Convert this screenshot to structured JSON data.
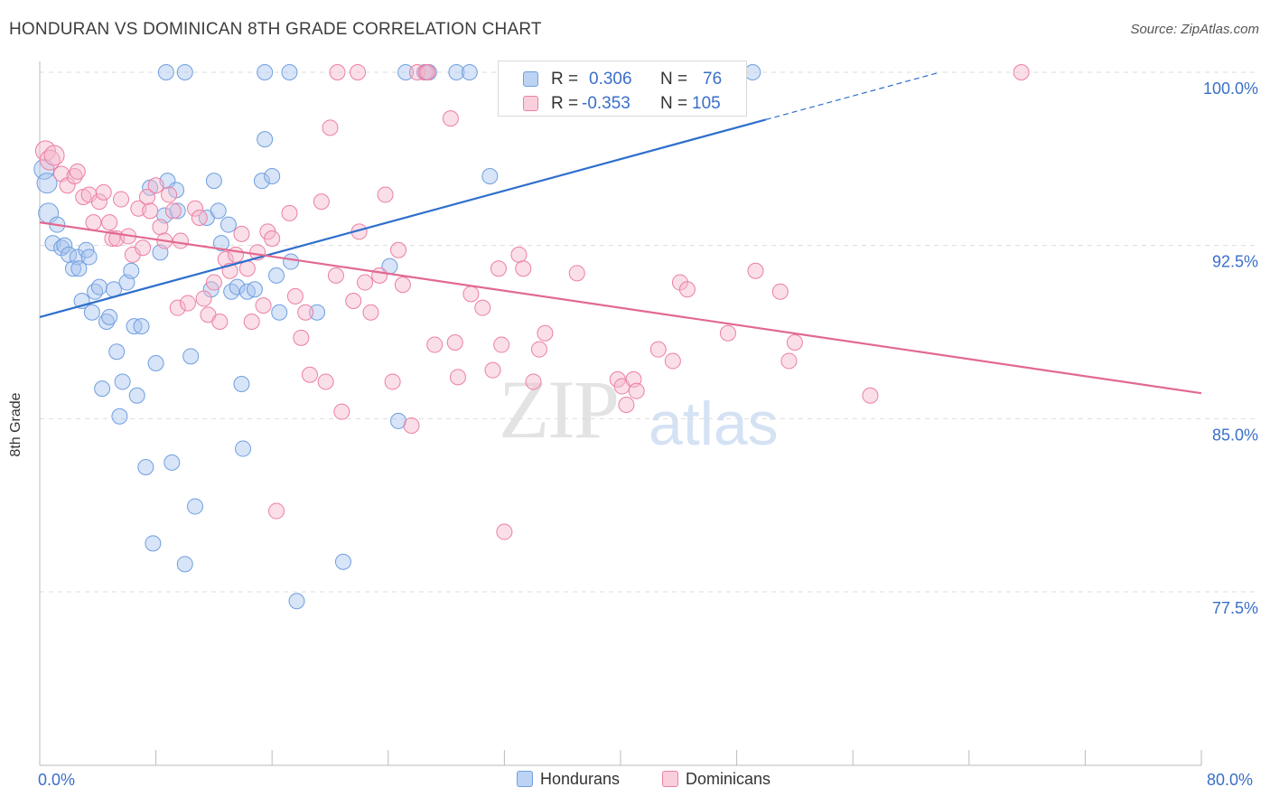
{
  "title": "HONDURAN VS DOMINICAN 8TH GRADE CORRELATION CHART",
  "source": "Source: ZipAtlas.com",
  "watermark": {
    "zip": "ZIP",
    "atlas": "atlas"
  },
  "legend": {
    "rows": [
      {
        "r_label": "R =",
        "r_value": "0.306",
        "n_label": "N =",
        "n_value": "76",
        "color": "#a9c4ee"
      },
      {
        "r_label": "R =",
        "r_value": "-0.353",
        "n_label": "N =",
        "n_value": "105",
        "color": "#f5b9cb"
      }
    ],
    "bottom": [
      {
        "label": "Hondurans",
        "color": "#a9c4ee"
      },
      {
        "label": "Dominicans",
        "color": "#f5b9cb"
      }
    ]
  },
  "chart_data": {
    "type": "scatter",
    "title": "HONDURAN VS DOMINICAN 8TH GRADE CORRELATION CHART",
    "xlabel": "",
    "ylabel": "8th Grade",
    "xlim": [
      0,
      80
    ],
    "ylim": [
      71.5,
      101.0
    ],
    "x_tick_labels": [
      "0.0%",
      "80.0%"
    ],
    "y_ticks": [
      77.5,
      85.0,
      92.5,
      100.0
    ],
    "y_tick_labels": [
      "77.5%",
      "85.0%",
      "92.5%",
      "100.0%"
    ],
    "grid": "horizontal dashed",
    "series": [
      {
        "name": "Hondurans",
        "color": "#6f9fe0",
        "fill": "#a9c4ee",
        "trend": {
          "x0": 0,
          "y0": 89.4,
          "x1": 50,
          "y1": 97.95,
          "dashed_to_x": 62,
          "dashed_to_y": 100.0,
          "color": "#2e6fcc"
        },
        "points": [
          [
            0.3,
            95.8
          ],
          [
            0.5,
            95.2
          ],
          [
            0.6,
            93.9
          ],
          [
            0.9,
            92.6
          ],
          [
            1.2,
            93.4
          ],
          [
            1.5,
            92.4
          ],
          [
            1.7,
            92.5
          ],
          [
            2.0,
            92.1
          ],
          [
            2.3,
            91.5
          ],
          [
            2.6,
            92.0
          ],
          [
            2.7,
            91.5
          ],
          [
            2.9,
            90.1
          ],
          [
            3.2,
            92.3
          ],
          [
            3.4,
            92.0
          ],
          [
            3.6,
            89.6
          ],
          [
            3.8,
            90.5
          ],
          [
            4.1,
            90.7
          ],
          [
            4.3,
            86.3
          ],
          [
            4.6,
            89.2
          ],
          [
            4.8,
            89.4
          ],
          [
            5.1,
            90.6
          ],
          [
            5.3,
            87.9
          ],
          [
            5.5,
            85.1
          ],
          [
            5.7,
            86.6
          ],
          [
            6.0,
            90.9
          ],
          [
            6.3,
            91.4
          ],
          [
            6.5,
            89.0
          ],
          [
            6.7,
            86.0
          ],
          [
            7.0,
            89.0
          ],
          [
            7.3,
            82.9
          ],
          [
            7.6,
            95.0
          ],
          [
            7.8,
            79.6
          ],
          [
            8.0,
            87.4
          ],
          [
            8.3,
            92.2
          ],
          [
            8.6,
            93.8
          ],
          [
            8.8,
            95.3
          ],
          [
            9.1,
            83.1
          ],
          [
            9.4,
            94.9
          ],
          [
            9.5,
            94.0
          ],
          [
            10.0,
            78.7
          ],
          [
            10.4,
            87.7
          ],
          [
            10.7,
            81.2
          ],
          [
            11.5,
            93.7
          ],
          [
            11.8,
            90.6
          ],
          [
            12.0,
            95.3
          ],
          [
            12.3,
            94.0
          ],
          [
            12.5,
            92.6
          ],
          [
            13.0,
            93.4
          ],
          [
            13.2,
            90.5
          ],
          [
            13.6,
            90.7
          ],
          [
            13.9,
            86.5
          ],
          [
            14.0,
            83.7
          ],
          [
            14.3,
            90.5
          ],
          [
            14.8,
            90.6
          ],
          [
            15.3,
            95.3
          ],
          [
            15.5,
            97.1
          ],
          [
            16.0,
            95.5
          ],
          [
            16.3,
            91.2
          ],
          [
            16.5,
            89.6
          ],
          [
            17.3,
            91.8
          ],
          [
            17.7,
            77.1
          ],
          [
            19.1,
            89.6
          ],
          [
            20.9,
            78.8
          ],
          [
            24.1,
            91.6
          ],
          [
            24.7,
            84.9
          ],
          [
            31.0,
            95.5
          ],
          [
            8.7,
            100.0
          ],
          [
            10.0,
            100.0
          ],
          [
            15.5,
            100.0
          ],
          [
            17.2,
            100.0
          ],
          [
            25.2,
            100.0
          ],
          [
            26.5,
            100.0
          ],
          [
            26.8,
            100.0
          ],
          [
            28.7,
            100.0
          ],
          [
            29.6,
            100.0
          ],
          [
            41.4,
            100.0
          ],
          [
            49.1,
            100.0
          ]
        ]
      },
      {
        "name": "Dominicans",
        "color": "#ec7fa3",
        "fill": "#f5b9cb",
        "trend": {
          "x0": 0,
          "y0": 93.5,
          "x1": 80,
          "y1": 86.1,
          "color": "#e2698f"
        },
        "points": [
          [
            0.4,
            96.6
          ],
          [
            0.7,
            96.2
          ],
          [
            1.0,
            96.4
          ],
          [
            1.5,
            95.6
          ],
          [
            1.9,
            95.1
          ],
          [
            2.4,
            95.5
          ],
          [
            2.6,
            95.7
          ],
          [
            3.0,
            94.6
          ],
          [
            3.4,
            94.7
          ],
          [
            3.7,
            93.5
          ],
          [
            4.1,
            94.4
          ],
          [
            4.4,
            94.8
          ],
          [
            4.8,
            93.5
          ],
          [
            5.0,
            92.8
          ],
          [
            5.3,
            92.8
          ],
          [
            5.6,
            94.5
          ],
          [
            6.1,
            92.9
          ],
          [
            6.4,
            92.1
          ],
          [
            6.8,
            94.1
          ],
          [
            7.1,
            92.4
          ],
          [
            7.4,
            94.6
          ],
          [
            7.6,
            94.0
          ],
          [
            8.0,
            95.1
          ],
          [
            8.3,
            93.3
          ],
          [
            8.6,
            92.7
          ],
          [
            8.9,
            94.7
          ],
          [
            9.2,
            94.0
          ],
          [
            9.5,
            89.8
          ],
          [
            9.7,
            92.7
          ],
          [
            10.2,
            90.0
          ],
          [
            10.7,
            94.1
          ],
          [
            11.0,
            93.7
          ],
          [
            11.3,
            90.2
          ],
          [
            11.6,
            89.5
          ],
          [
            12.0,
            90.9
          ],
          [
            12.4,
            89.2
          ],
          [
            12.8,
            91.9
          ],
          [
            13.1,
            91.4
          ],
          [
            13.5,
            92.1
          ],
          [
            13.9,
            93.0
          ],
          [
            14.3,
            91.5
          ],
          [
            14.6,
            89.2
          ],
          [
            15.0,
            92.2
          ],
          [
            15.4,
            89.9
          ],
          [
            15.7,
            93.1
          ],
          [
            16.0,
            92.8
          ],
          [
            16.3,
            81.0
          ],
          [
            17.2,
            93.9
          ],
          [
            17.6,
            90.3
          ],
          [
            18.0,
            88.5
          ],
          [
            18.3,
            89.6
          ],
          [
            18.6,
            86.9
          ],
          [
            19.4,
            94.4
          ],
          [
            19.7,
            86.6
          ],
          [
            20.0,
            97.6
          ],
          [
            20.4,
            91.2
          ],
          [
            20.8,
            85.3
          ],
          [
            21.6,
            90.1
          ],
          [
            22.0,
            93.1
          ],
          [
            22.4,
            90.9
          ],
          [
            22.8,
            89.6
          ],
          [
            23.4,
            91.2
          ],
          [
            23.8,
            94.7
          ],
          [
            24.3,
            86.6
          ],
          [
            24.7,
            92.3
          ],
          [
            25.0,
            90.8
          ],
          [
            25.6,
            84.7
          ],
          [
            26.0,
            100.0
          ],
          [
            26.6,
            100.0
          ],
          [
            26.7,
            100.0
          ],
          [
            27.2,
            88.2
          ],
          [
            28.3,
            98.0
          ],
          [
            28.6,
            88.3
          ],
          [
            28.8,
            86.8
          ],
          [
            29.7,
            90.4
          ],
          [
            30.5,
            89.8
          ],
          [
            31.2,
            87.1
          ],
          [
            31.6,
            91.5
          ],
          [
            31.8,
            88.2
          ],
          [
            32.0,
            80.1
          ],
          [
            33.0,
            92.1
          ],
          [
            33.3,
            91.5
          ],
          [
            34.0,
            86.6
          ],
          [
            34.4,
            88.0
          ],
          [
            34.8,
            88.7
          ],
          [
            37.0,
            91.3
          ],
          [
            39.8,
            86.7
          ],
          [
            40.1,
            86.4
          ],
          [
            40.4,
            85.6
          ],
          [
            40.9,
            86.7
          ],
          [
            41.1,
            86.2
          ],
          [
            42.6,
            88.0
          ],
          [
            43.6,
            87.5
          ],
          [
            44.1,
            90.9
          ],
          [
            44.6,
            90.6
          ],
          [
            47.4,
            88.7
          ],
          [
            49.3,
            91.4
          ],
          [
            51.0,
            90.5
          ],
          [
            51.6,
            87.5
          ],
          [
            52.0,
            88.3
          ],
          [
            57.2,
            86.0
          ],
          [
            67.6,
            100.0
          ],
          [
            20.5,
            100.0
          ],
          [
            21.9,
            100.0
          ],
          [
            32.5,
            100.0
          ]
        ]
      }
    ]
  }
}
